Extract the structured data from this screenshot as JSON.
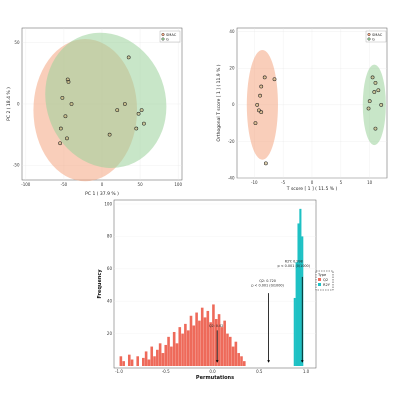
{
  "colors": {
    "group_a": "#f4a582",
    "group_b": "#9ad29a",
    "perm_bar": "#ee6a5a",
    "real_bar": "#1ec1c4",
    "marker_edge": "#222222",
    "marker_fill": "#c9b37a"
  },
  "chart_data": [
    {
      "id": "pca",
      "type": "scatter",
      "title": "",
      "xlabel": "PC 1 ( 37.9 % )",
      "ylabel": "PC 2 ( 18.4 % )",
      "xlim": [
        -105,
        105
      ],
      "ylim": [
        -62,
        62
      ],
      "xticks": [
        "-100",
        "-50",
        "0",
        "50",
        "100"
      ],
      "xtick_values": [
        -100,
        -50,
        0,
        50,
        100
      ],
      "yticks": [
        "-50",
        "0",
        "50"
      ],
      "ytick_values": [
        -50,
        0,
        50
      ],
      "legend": [
        "SMAC",
        "G"
      ],
      "legend_position": "top-right",
      "ellipses": [
        {
          "group": "SMAC",
          "cx": -22,
          "cy": -5,
          "rx": 68,
          "ry": 58,
          "angle": 0
        },
        {
          "group": "G",
          "cx": 5,
          "cy": 3,
          "rx": 78,
          "ry": 56,
          "angle": -20
        }
      ],
      "series": [
        {
          "group": "SMAC",
          "points": [
            [
              -45,
              20
            ],
            [
              -44,
              18
            ],
            [
              -52,
              5
            ],
            [
              -48,
              -10
            ],
            [
              -54,
              -20
            ],
            [
              -46,
              -28
            ],
            [
              -55,
              -32
            ],
            [
              -40,
              0
            ]
          ]
        },
        {
          "group": "G",
          "points": [
            [
              35,
              38
            ],
            [
              52,
              -5
            ],
            [
              48,
              -8
            ],
            [
              45,
              -20
            ],
            [
              55,
              -16
            ],
            [
              20,
              -5
            ],
            [
              30,
              0
            ],
            [
              10,
              -25
            ]
          ]
        }
      ]
    },
    {
      "id": "opls",
      "type": "scatter",
      "title": "",
      "xlabel": "T score [ 1 ] ( 11.5 % )",
      "ylabel": "Orthogonal T score [ 1 ] ( 11.9 % )",
      "xlim": [
        -13,
        13
      ],
      "ylim": [
        -40,
        42
      ],
      "xticks": [
        "-10",
        "-5",
        "0",
        "5",
        "10"
      ],
      "xtick_values": [
        -10,
        -5,
        0,
        5,
        10
      ],
      "yticks": [
        "-40",
        "-20",
        "0",
        "20",
        "40"
      ],
      "ytick_values": [
        -40,
        -20,
        0,
        20,
        40
      ],
      "legend": [
        "SMAC",
        "G"
      ],
      "legend_position": "top-right",
      "ellipses": [
        {
          "group": "SMAC",
          "cx": -8.6,
          "cy": 0,
          "rx": 2.7,
          "ry": 30,
          "angle": 0
        },
        {
          "group": "G",
          "cx": 10.8,
          "cy": 0,
          "rx": 2.0,
          "ry": 22,
          "angle": 0
        }
      ],
      "series": [
        {
          "group": "SMAC",
          "points": [
            [
              -8.2,
              15
            ],
            [
              -6.5,
              14
            ],
            [
              -8.8,
              10
            ],
            [
              -9.0,
              5
            ],
            [
              -9.5,
              0
            ],
            [
              -9.2,
              -3
            ],
            [
              -8.8,
              -4
            ],
            [
              -9.8,
              -10
            ],
            [
              -8.0,
              -32
            ]
          ]
        },
        {
          "group": "G",
          "points": [
            [
              10.5,
              15
            ],
            [
              11.0,
              12
            ],
            [
              11.5,
              8
            ],
            [
              10.8,
              7
            ],
            [
              10.0,
              2
            ],
            [
              12.0,
              0
            ],
            [
              9.8,
              -2
            ],
            [
              11.0,
              -13
            ]
          ]
        }
      ]
    },
    {
      "id": "permutation",
      "type": "bar",
      "title": "",
      "xlabel": "Permutations",
      "ylabel": "Frequency",
      "xlim": [
        -1.0,
        1.0
      ],
      "ylim": [
        0,
        100
      ],
      "xticks": [
        "-1.0",
        "-0.5",
        "0.0",
        "0.5",
        "1.0"
      ],
      "xtick_values": [
        -1.0,
        -0.5,
        0.0,
        0.5,
        1.0
      ],
      "yticks": [
        "20",
        "40",
        "60",
        "80",
        "100"
      ],
      "ytick_values": [
        20,
        40,
        60,
        80,
        100
      ],
      "legend": [
        "Q2",
        "R2Y"
      ],
      "legend_title": "Type",
      "legend_position": "right",
      "series": [
        {
          "name": "Q2",
          "x": [
            -0.98,
            -0.95,
            -0.92,
            -0.89,
            -0.86,
            -0.83,
            -0.8,
            -0.77,
            -0.74,
            -0.71,
            -0.68,
            -0.65,
            -0.62,
            -0.59,
            -0.56,
            -0.53,
            -0.5,
            -0.47,
            -0.44,
            -0.41,
            -0.38,
            -0.35,
            -0.32,
            -0.29,
            -0.26,
            -0.23,
            -0.2,
            -0.17,
            -0.14,
            -0.11,
            -0.08,
            -0.05,
            -0.02,
            0.01,
            0.04,
            0.07,
            0.1,
            0.13,
            0.16,
            0.19,
            0.22,
            0.25,
            0.28,
            0.31,
            0.34
          ],
          "values": [
            6,
            3,
            0,
            7,
            4,
            0,
            6,
            0,
            5,
            9,
            4,
            12,
            6,
            10,
            14,
            8,
            13,
            18,
            12,
            21,
            14,
            24,
            20,
            26,
            22,
            31,
            25,
            33,
            28,
            36,
            30,
            34,
            27,
            38,
            29,
            32,
            24,
            28,
            20,
            18,
            12,
            15,
            8,
            6,
            3
          ]
        },
        {
          "name": "R2Y",
          "x": [
            0.88,
            0.9,
            0.92,
            0.94,
            0.96
          ],
          "values": [
            42,
            64,
            88,
            97,
            80
          ]
        }
      ],
      "annotations": [
        {
          "text": "Q2: 0.02",
          "x": 0.05,
          "y": 24
        },
        {
          "text": "Q2: 0.720",
          "x": 0.6,
          "y": 52
        },
        {
          "text": "p < 0.001 (0/1000)",
          "x": 0.6,
          "y": 49
        },
        {
          "text": "R2Y: 0.998",
          "x": 0.88,
          "y": 64
        },
        {
          "text": "p < 0.001 (0/1000)",
          "x": 0.88,
          "y": 61
        }
      ],
      "arrows": [
        {
          "x": 0.05,
          "from": 22,
          "to": 2
        },
        {
          "x": 0.6,
          "from": 45,
          "to": 2
        },
        {
          "x": 0.96,
          "from": 55,
          "to": 2
        }
      ]
    }
  ]
}
